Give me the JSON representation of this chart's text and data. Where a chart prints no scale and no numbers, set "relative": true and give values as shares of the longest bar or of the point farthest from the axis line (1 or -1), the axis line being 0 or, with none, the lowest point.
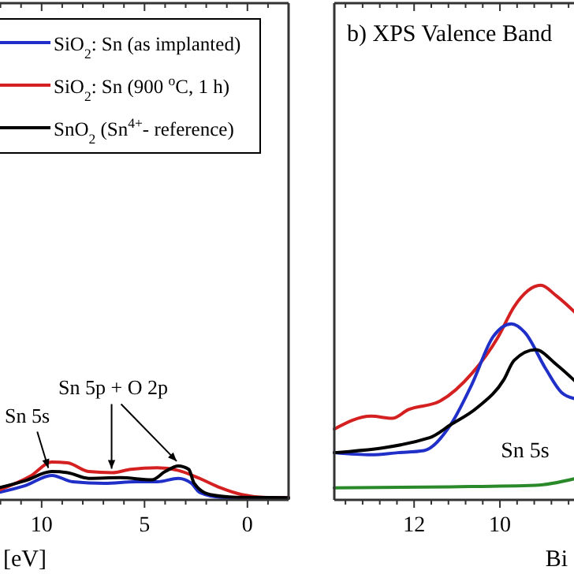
{
  "chart_data": [
    {
      "type": "line",
      "relative": true,
      "xlabel": "[eV]",
      "xlim": [
        12.1,
        -2
      ],
      "xticks": [
        {
          "value": 12,
          "label": null
        },
        {
          "value": 11,
          "label": null
        },
        10,
        {
          "value": 9,
          "label": null
        },
        {
          "value": 8,
          "label": null
        },
        {
          "value": 7,
          "label": null
        },
        {
          "value": 6,
          "label": null
        },
        5,
        {
          "value": 4,
          "label": null
        },
        {
          "value": 3,
          "label": null
        },
        {
          "value": 2,
          "label": null
        },
        {
          "value": 1,
          "label": null
        },
        0,
        {
          "value": -1,
          "label": null
        }
      ],
      "tick_labels": "x",
      "legend": "top left",
      "annotations": [
        {
          "text": "Sn 5s",
          "x": 9.6,
          "y": 0.72
        },
        {
          "text": "Sn 5p + O 2p",
          "x": 6.6,
          "y": 0.7
        }
      ],
      "series": [
        {
          "name": "SiO$_{2}$: Sn (as implanted)",
          "color": "#1f2fc8",
          "x": [
            12.08,
            10.79,
            9.51,
            8.49,
            6.95,
            5.41,
            4.38,
            3.36,
            2.72,
            2.33,
            1.31,
            -2.0
          ],
          "values": [
            0.2,
            0.38,
            0.65,
            0.48,
            0.44,
            0.48,
            0.48,
            0.57,
            0.44,
            0.2,
            0.07,
            0.05
          ]
        },
        {
          "name": "SiO$_{2}$: Sn (900 $^{o}$C, 1 h)",
          "color": "#d42020",
          "x": [
            12.08,
            10.54,
            9.51,
            8.74,
            7.72,
            6.56,
            5.67,
            4.38,
            3.36,
            2.33,
            1.31,
            0.28,
            -0.74,
            -2.0
          ],
          "values": [
            0.26,
            0.63,
            1.0,
            0.98,
            0.75,
            0.72,
            0.81,
            0.85,
            0.78,
            0.57,
            0.32,
            0.14,
            0.07,
            0.06
          ]
        },
        {
          "name": "SnO$_{2}$ (Sn$^{4+}$- reference)",
          "color": "#000000",
          "x": [
            12.08,
            10.79,
            9.51,
            8.74,
            7.72,
            6.18,
            4.64,
            4.0,
            3.36,
            2.85,
            2.59,
            1.82,
            0.54,
            -2.0
          ],
          "values": [
            0.32,
            0.51,
            0.75,
            0.72,
            0.57,
            0.59,
            0.53,
            0.75,
            0.9,
            0.81,
            0.44,
            0.14,
            0.07,
            0.06
          ]
        }
      ]
    },
    {
      "type": "line",
      "relative": true,
      "title": "b) XPS Valence Band",
      "xlabel": "Bi",
      "xlim": [
        13.86,
        8.2
      ],
      "xticks": [
        {
          "value": 13.6,
          "label": null
        },
        {
          "value": 13.2,
          "label": null
        },
        {
          "value": 12.8,
          "label": null
        },
        {
          "value": 12.4,
          "label": null
        },
        12,
        {
          "value": 11.6,
          "label": null
        },
        {
          "value": 11.2,
          "label": null
        },
        {
          "value": 10.8,
          "label": null
        },
        {
          "value": 10.4,
          "label": null
        },
        10,
        {
          "value": 9.6,
          "label": null
        },
        {
          "value": 9.2,
          "label": null
        },
        {
          "value": 8.8,
          "label": null
        },
        {
          "value": 8.4,
          "label": null
        }
      ],
      "tick_labels": "x",
      "annotations": [
        "Sn 5s"
      ],
      "series": [
        {
          "color": "#d42020",
          "x": [
            13.86,
            13.0,
            12.51,
            12.14,
            11.4,
            10.65,
            10.04,
            9.67,
            9.05,
            8.68,
            8.23
          ],
          "values": [
            0.33,
            0.39,
            0.38,
            0.42,
            0.46,
            0.59,
            0.76,
            0.9,
            1.0,
            0.95,
            0.87
          ]
        },
        {
          "color": "#1f2fc8",
          "x": [
            13.86,
            13.0,
            12.38,
            11.77,
            11.15,
            10.65,
            10.16,
            9.73,
            9.42,
            8.93,
            8.56,
            8.22
          ],
          "values": [
            0.22,
            0.21,
            0.22,
            0.23,
            0.35,
            0.54,
            0.76,
            0.82,
            0.78,
            0.61,
            0.5,
            0.47
          ]
        },
        {
          "color": "#000000",
          "x": [
            13.86,
            11.64,
            11.15,
            10.53,
            9.91,
            9.67,
            9.17,
            8.68,
            8.23
          ],
          "values": [
            0.22,
            0.29,
            0.35,
            0.43,
            0.56,
            0.65,
            0.7,
            0.63,
            0.55
          ]
        },
        {
          "color": "#2a8a2a",
          "x": [
            13.86,
            11.15,
            9.17,
            8.23
          ],
          "values": [
            0.056,
            0.061,
            0.068,
            0.1
          ]
        }
      ]
    }
  ]
}
